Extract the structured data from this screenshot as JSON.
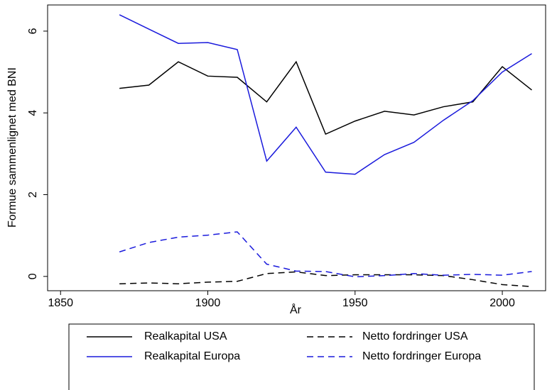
{
  "chart_data": {
    "type": "line",
    "x": [
      1870,
      1880,
      1890,
      1900,
      1910,
      1920,
      1930,
      1940,
      1950,
      1960,
      1970,
      1980,
      1990,
      2000,
      2010
    ],
    "series": [
      {
        "name": "Realkapital USA",
        "color": "#000000",
        "dash": false,
        "values": [
          4.6,
          4.68,
          5.25,
          4.9,
          4.87,
          4.27,
          5.25,
          3.48,
          3.8,
          4.04,
          3.95,
          4.15,
          4.27,
          5.13,
          4.56
        ]
      },
      {
        "name": "Netto fordringer USA",
        "color": "#000000",
        "dash": true,
        "values": [
          -0.18,
          -0.16,
          -0.18,
          -0.14,
          -0.12,
          0.07,
          0.11,
          0.02,
          0.04,
          0.04,
          0.04,
          0.02,
          -0.08,
          -0.2,
          -0.25
        ]
      },
      {
        "name": "Realkapital Europa",
        "color": "#1a1adc",
        "dash": false,
        "values": [
          6.4,
          6.05,
          5.7,
          5.72,
          5.55,
          2.82,
          3.65,
          2.55,
          2.5,
          2.98,
          3.28,
          3.82,
          4.3,
          5.0,
          5.45
        ]
      },
      {
        "name": "Netto fordringer Europa",
        "color": "#1a1adc",
        "dash": true,
        "values": [
          0.6,
          0.83,
          0.96,
          1.01,
          1.09,
          0.3,
          0.13,
          0.12,
          -0.01,
          0.02,
          0.07,
          0.03,
          0.05,
          0.03,
          0.12
        ]
      }
    ],
    "xlabel": "År",
    "ylabel": "Formue sammenlignet med BNI",
    "xlim": [
      1845.6,
      2014.7
    ],
    "xticks": [
      1850,
      1900,
      1950,
      2000
    ],
    "ylim": [
      -0.35,
      6.64
    ],
    "yticks": [
      0,
      2,
      4,
      6
    ],
    "grid": false,
    "legend": "bottom"
  }
}
